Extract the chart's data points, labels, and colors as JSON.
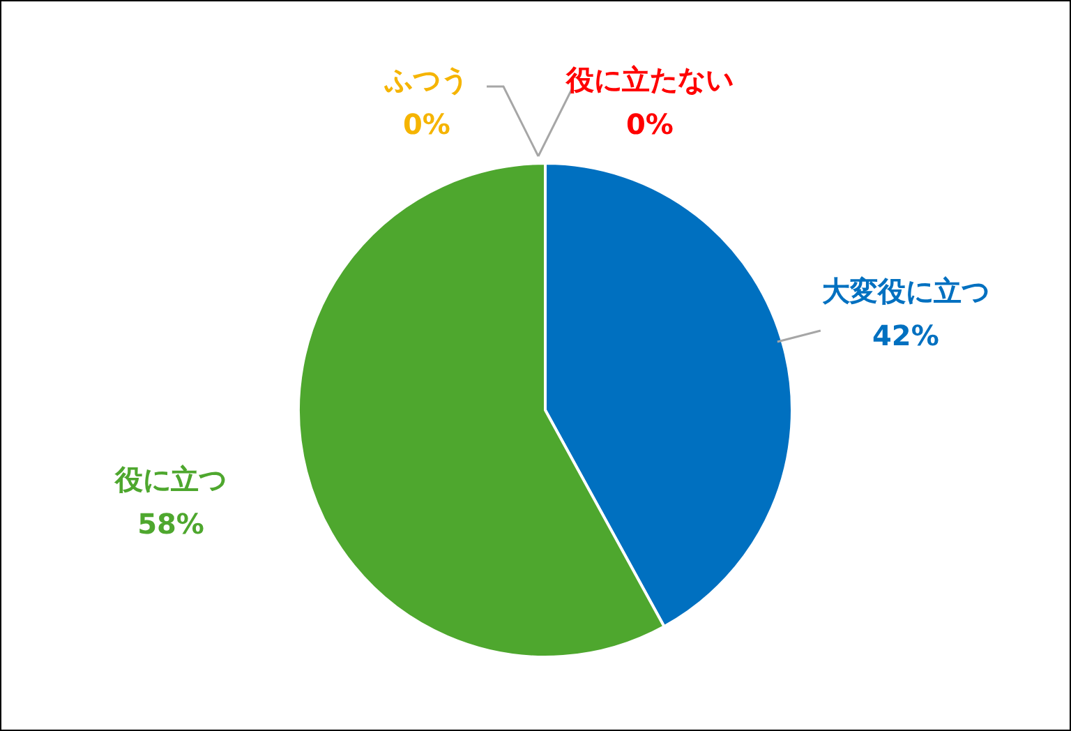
{
  "chart_data": {
    "type": "pie",
    "categories": [
      "大変役に立つ",
      "役に立つ",
      "ふつう",
      "役に立たない"
    ],
    "values": [
      42,
      58,
      0,
      0
    ],
    "value_labels": [
      "42%",
      "58%",
      "0%",
      "0%"
    ],
    "colors": [
      "#0070c0",
      "#4ea72e",
      "#f5b400",
      "#ff0000"
    ]
  }
}
